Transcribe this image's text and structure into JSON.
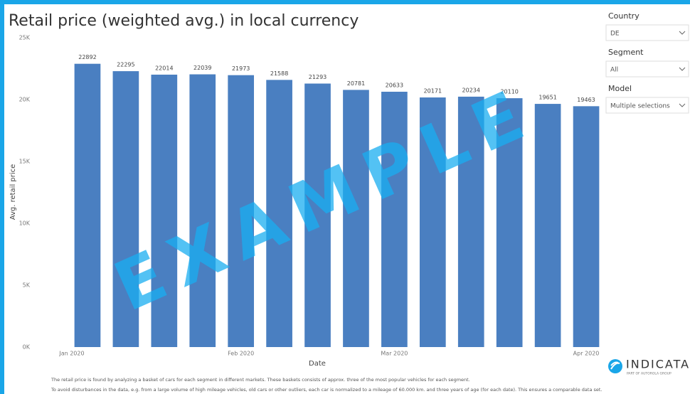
{
  "chart_data": {
    "type": "bar",
    "title": "Retail price (weighted avg.) in local currency",
    "y_label": "Avg. retail price",
    "x_label": "Date",
    "categories": [
      "Jan 2020",
      null,
      null,
      null,
      "Feb 2020",
      null,
      null,
      null,
      "Mar 2020",
      null,
      null,
      null,
      null,
      "Apr 2020"
    ],
    "values": [
      22892,
      22295,
      22014,
      22039,
      21973,
      21588,
      21293,
      20781,
      20633,
      20171,
      20234,
      20110,
      19651,
      19463
    ],
    "color": "#4a7fc1",
    "ylim": [
      0,
      25000
    ],
    "yticks": [
      {
        "value": 0,
        "label": "0K"
      },
      {
        "value": 5000,
        "label": "5K"
      },
      {
        "value": 10000,
        "label": "10K"
      },
      {
        "value": 15000,
        "label": "15K"
      },
      {
        "value": 20000,
        "label": "20K"
      },
      {
        "value": 25000,
        "label": "25K"
      }
    ],
    "grid": false
  },
  "filters": [
    {
      "label": "Country",
      "value": "DE"
    },
    {
      "label": "Segment",
      "value": "All"
    },
    {
      "label": "Model",
      "value": "Multiple selections"
    }
  ],
  "footnotes": [
    "The retail price is found by analyzing a basket of cars for each segment in different markets. These baskets consists of approx. three of the most popular vehicles for each segment.",
    "To avoid disturbances in the data, e.g. from a large volume of high mileage vehicles, old cars or other outliers, each car is normalized to a mileage of 60.000 km. and three years of age (for each date). This ensures a comparable data set."
  ],
  "watermark": "EXAMPLE",
  "logo": {
    "name": "INDICATA",
    "tagline": "PART OF AUTOROLA GROUP"
  }
}
